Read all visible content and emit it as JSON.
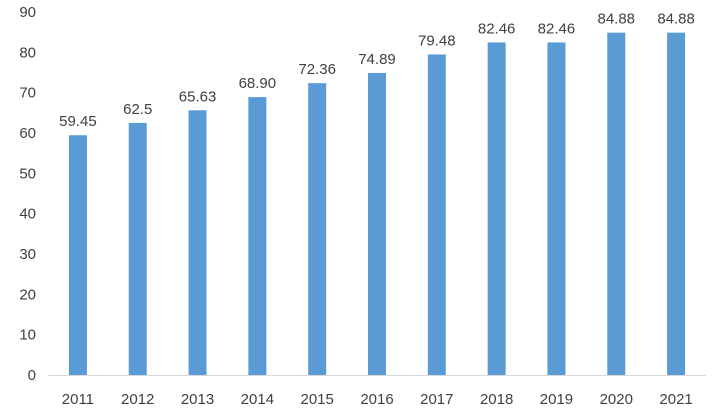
{
  "chart_data": {
    "type": "bar",
    "title": "",
    "xlabel": "",
    "ylabel": "",
    "categories": [
      "2011",
      "2012",
      "2013",
      "2014",
      "2015",
      "2016",
      "2017",
      "2018",
      "2019",
      "2020",
      "2021"
    ],
    "values": [
      59.45,
      62.5,
      65.63,
      68.9,
      72.36,
      74.89,
      79.48,
      82.46,
      82.46,
      84.88,
      84.88
    ],
    "data_labels": [
      "59.45",
      "62.5",
      "65.63",
      "68.90",
      "72.36",
      "74.89",
      "79.48",
      "82.46",
      "82.46",
      "84.88",
      "84.88"
    ],
    "ylim": [
      0,
      90
    ],
    "yticks": [
      0,
      10,
      20,
      30,
      40,
      50,
      60,
      70,
      80,
      90
    ],
    "grid": false,
    "legend": "none",
    "bar_color": "#5B9BD5",
    "axis_color": "#D9D9D9",
    "text_color": "#404040"
  }
}
